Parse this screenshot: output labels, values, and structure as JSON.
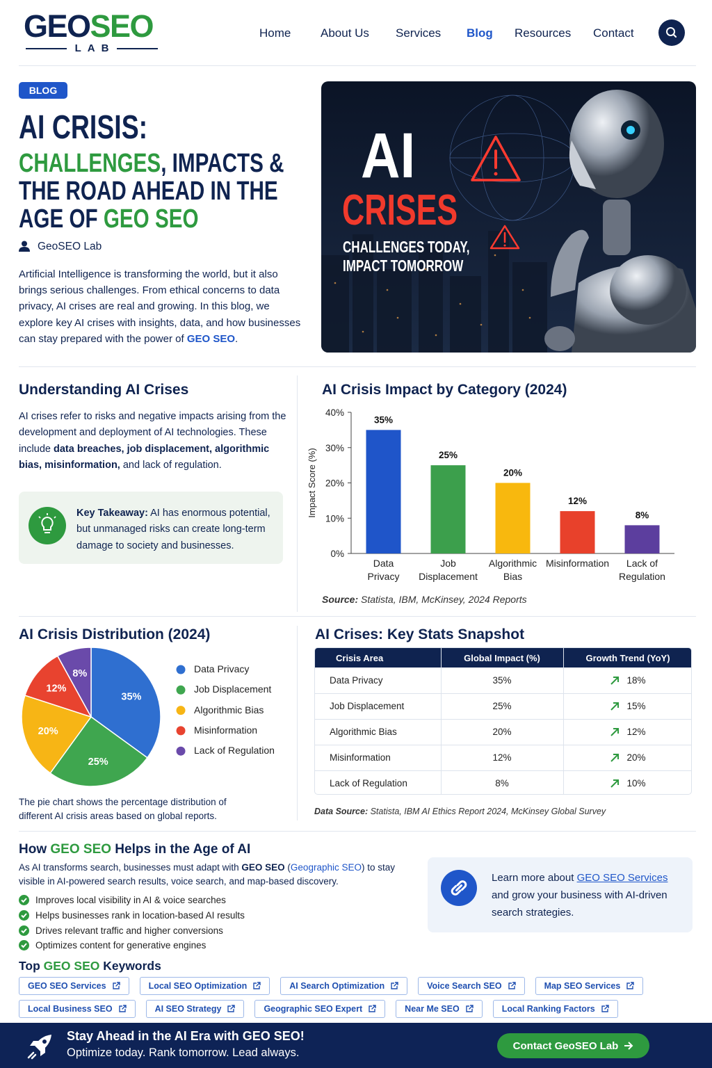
{
  "header": {
    "logo_1": "GEO",
    "logo_2": "SEO",
    "logo_sub": "LAB",
    "nav": [
      "Home",
      "About Us",
      "Services",
      "Blog",
      "Resources",
      "Contact"
    ]
  },
  "hero": {
    "badge": "BLOG",
    "title": [
      [
        {
          "text": "AI CRISIS:",
          "style": "plain"
        }
      ],
      [
        {
          "text": "CHALLENGES",
          "style": "green"
        },
        {
          "text": ", IMPACTS &",
          "style": "plain"
        }
      ],
      [
        {
          "text": "THE ROAD AHEAD IN THE",
          "style": "plain"
        }
      ],
      [
        {
          "text": "AGE OF ",
          "style": "plain"
        },
        {
          "text": "GEO SEO",
          "style": "green"
        }
      ]
    ],
    "author": "GeoSEO Lab",
    "intro": [
      {
        "text": "Artificial Intelligence is transforming the world, but it also brings serious challenges. From ethical concerns to data privacy, AI crises are real and growing. In this blog, we explore key AI crises with insights, data, and how businesses can stay prepared with the power of ",
        "style": "plain"
      },
      {
        "text": "GEO SEO",
        "style": "blue"
      },
      {
        "text": ".",
        "style": "plain"
      }
    ],
    "image_title_1": "AI",
    "image_title_2": "CRISES",
    "image_sub_1": "CHALLENGES TODAY,",
    "image_sub_2": "IMPACT TOMORROW"
  },
  "understanding": {
    "heading": "Understanding AI Crises",
    "text": [
      {
        "text": "AI crises refer to risks and negative impacts arising from the development and deployment of AI technologies. These include ",
        "style": "plain"
      },
      {
        "text": "data breaches, job displacement, algorithmic bias, misinformation,",
        "style": "bold"
      },
      {
        "text": " and lack of regulation.",
        "style": "plain"
      }
    ],
    "takeaway": [
      {
        "text": "Key Takeaway:",
        "style": "bold"
      },
      {
        "text": " AI has enormous potential, but unmanaged risks can create long-term damage to society and businesses.",
        "style": "plain"
      }
    ]
  },
  "chart_data": [
    {
      "type": "bar",
      "title": "AI Crisis Impact by Category (2024)",
      "categories": [
        "Data\nPrivacy",
        "Job\nDisplacement",
        "Algorithmic\nBias",
        "Misinformation",
        "Lack of\nRegulation"
      ],
      "values": [
        35,
        25,
        20,
        12,
        8
      ],
      "value_labels": [
        "35%",
        "25%",
        "20%",
        "12%",
        "8%"
      ],
      "colors": [
        "#1f55c9",
        "#3c9f4c",
        "#f8b80e",
        "#e8412b",
        "#5c3e9e"
      ],
      "ylim": [
        0,
        40
      ],
      "yticks": [
        {
          "value": 0,
          "label": "0%"
        },
        {
          "value": 10,
          "label": "10%"
        },
        {
          "value": 20,
          "label": "20%"
        },
        {
          "value": 30,
          "label": "30%"
        },
        {
          "value": 40,
          "label": "40%"
        }
      ],
      "ylabel": "Impact Score (%)",
      "source_label": "Source:",
      "source": "Statista, IBM, McKinsey, 2024 Reports"
    },
    {
      "type": "pie",
      "title": "AI Crisis Distribution (2024)",
      "categories": [
        "Data Privacy",
        "Job Displacement",
        "Algorithmic Bias",
        "Misinformation",
        "Lack of Regulation"
      ],
      "values": [
        35,
        25,
        20,
        12,
        8
      ],
      "value_labels": [
        "35%",
        "25%",
        "20%",
        "12%",
        "8%"
      ],
      "colors": [
        "#2f6fd0",
        "#3fa64f",
        "#f7b515",
        "#e8432f",
        "#6a4aaa"
      ],
      "legend": "right",
      "caption": "The pie chart shows the percentage distribution of different AI crisis areas based on global reports."
    }
  ],
  "stats": {
    "heading": "AI Crises: Key Stats Snapshot",
    "headers": [
      "Crisis Area",
      "Global Impact (%)",
      "Growth Trend (YoY)"
    ],
    "rows": [
      [
        "Data Privacy",
        "35%",
        "18%"
      ],
      [
        "Job Displacement",
        "25%",
        "15%"
      ],
      [
        "Algorithmic Bias",
        "20%",
        "12%"
      ],
      [
        "Misinformation",
        "12%",
        "20%"
      ],
      [
        "Lack of Regulation",
        "8%",
        "10%"
      ]
    ],
    "source_label": "Data Source:",
    "source": "Statista, IBM AI Ethics Report 2024, McKinsey Global Survey"
  },
  "geo_seo": {
    "heading": [
      {
        "text": "How ",
        "style": "plain"
      },
      {
        "text": "GEO SEO",
        "style": "green"
      },
      {
        "text": " Helps in the Age of AI",
        "style": "plain"
      }
    ],
    "intro": [
      {
        "text": "As AI transforms search, businesses must adapt with ",
        "style": "plain"
      },
      {
        "text": "GEO SEO",
        "style": "bold"
      },
      {
        "text": " (",
        "style": "plain"
      },
      {
        "text": "Geographic SEO",
        "style": "accent"
      },
      {
        "text": ") to stay visible in AI-powered search results, voice search, and map-based discovery.",
        "style": "plain"
      }
    ],
    "bullets": [
      "Improves local visibility in AI & voice searches",
      "Helps businesses rank in location-based AI results",
      "Drives relevant traffic and higher conversions",
      "Optimizes content for generative engines"
    ],
    "box": [
      {
        "text": "Learn more about ",
        "style": "plain"
      },
      {
        "text": "GEO SEO Services",
        "style": "link"
      },
      {
        "text": " and grow your business with AI-driven search strategies.",
        "style": "plain"
      }
    ]
  },
  "keywords": {
    "heading": [
      {
        "text": "Top ",
        "style": "plain"
      },
      {
        "text": "GEO SEO",
        "style": "green"
      },
      {
        "text": " Keywords",
        "style": "plain"
      }
    ],
    "rows": [
      [
        "GEO SEO Services",
        "Local SEO Optimization",
        "AI Search Optimization",
        "Voice Search SEO",
        "Map SEO Services"
      ],
      [
        "Local Business SEO",
        "AI SEO Strategy",
        "Geographic SEO Expert",
        "Near Me SEO",
        "Local Ranking Factors"
      ]
    ]
  },
  "cta": {
    "title": "Stay Ahead in the AI Era with GEO SEO!",
    "subtitle": "Optimize today. Rank tomorrow. Lead always.",
    "button": "Contact GeoSEO Lab"
  }
}
